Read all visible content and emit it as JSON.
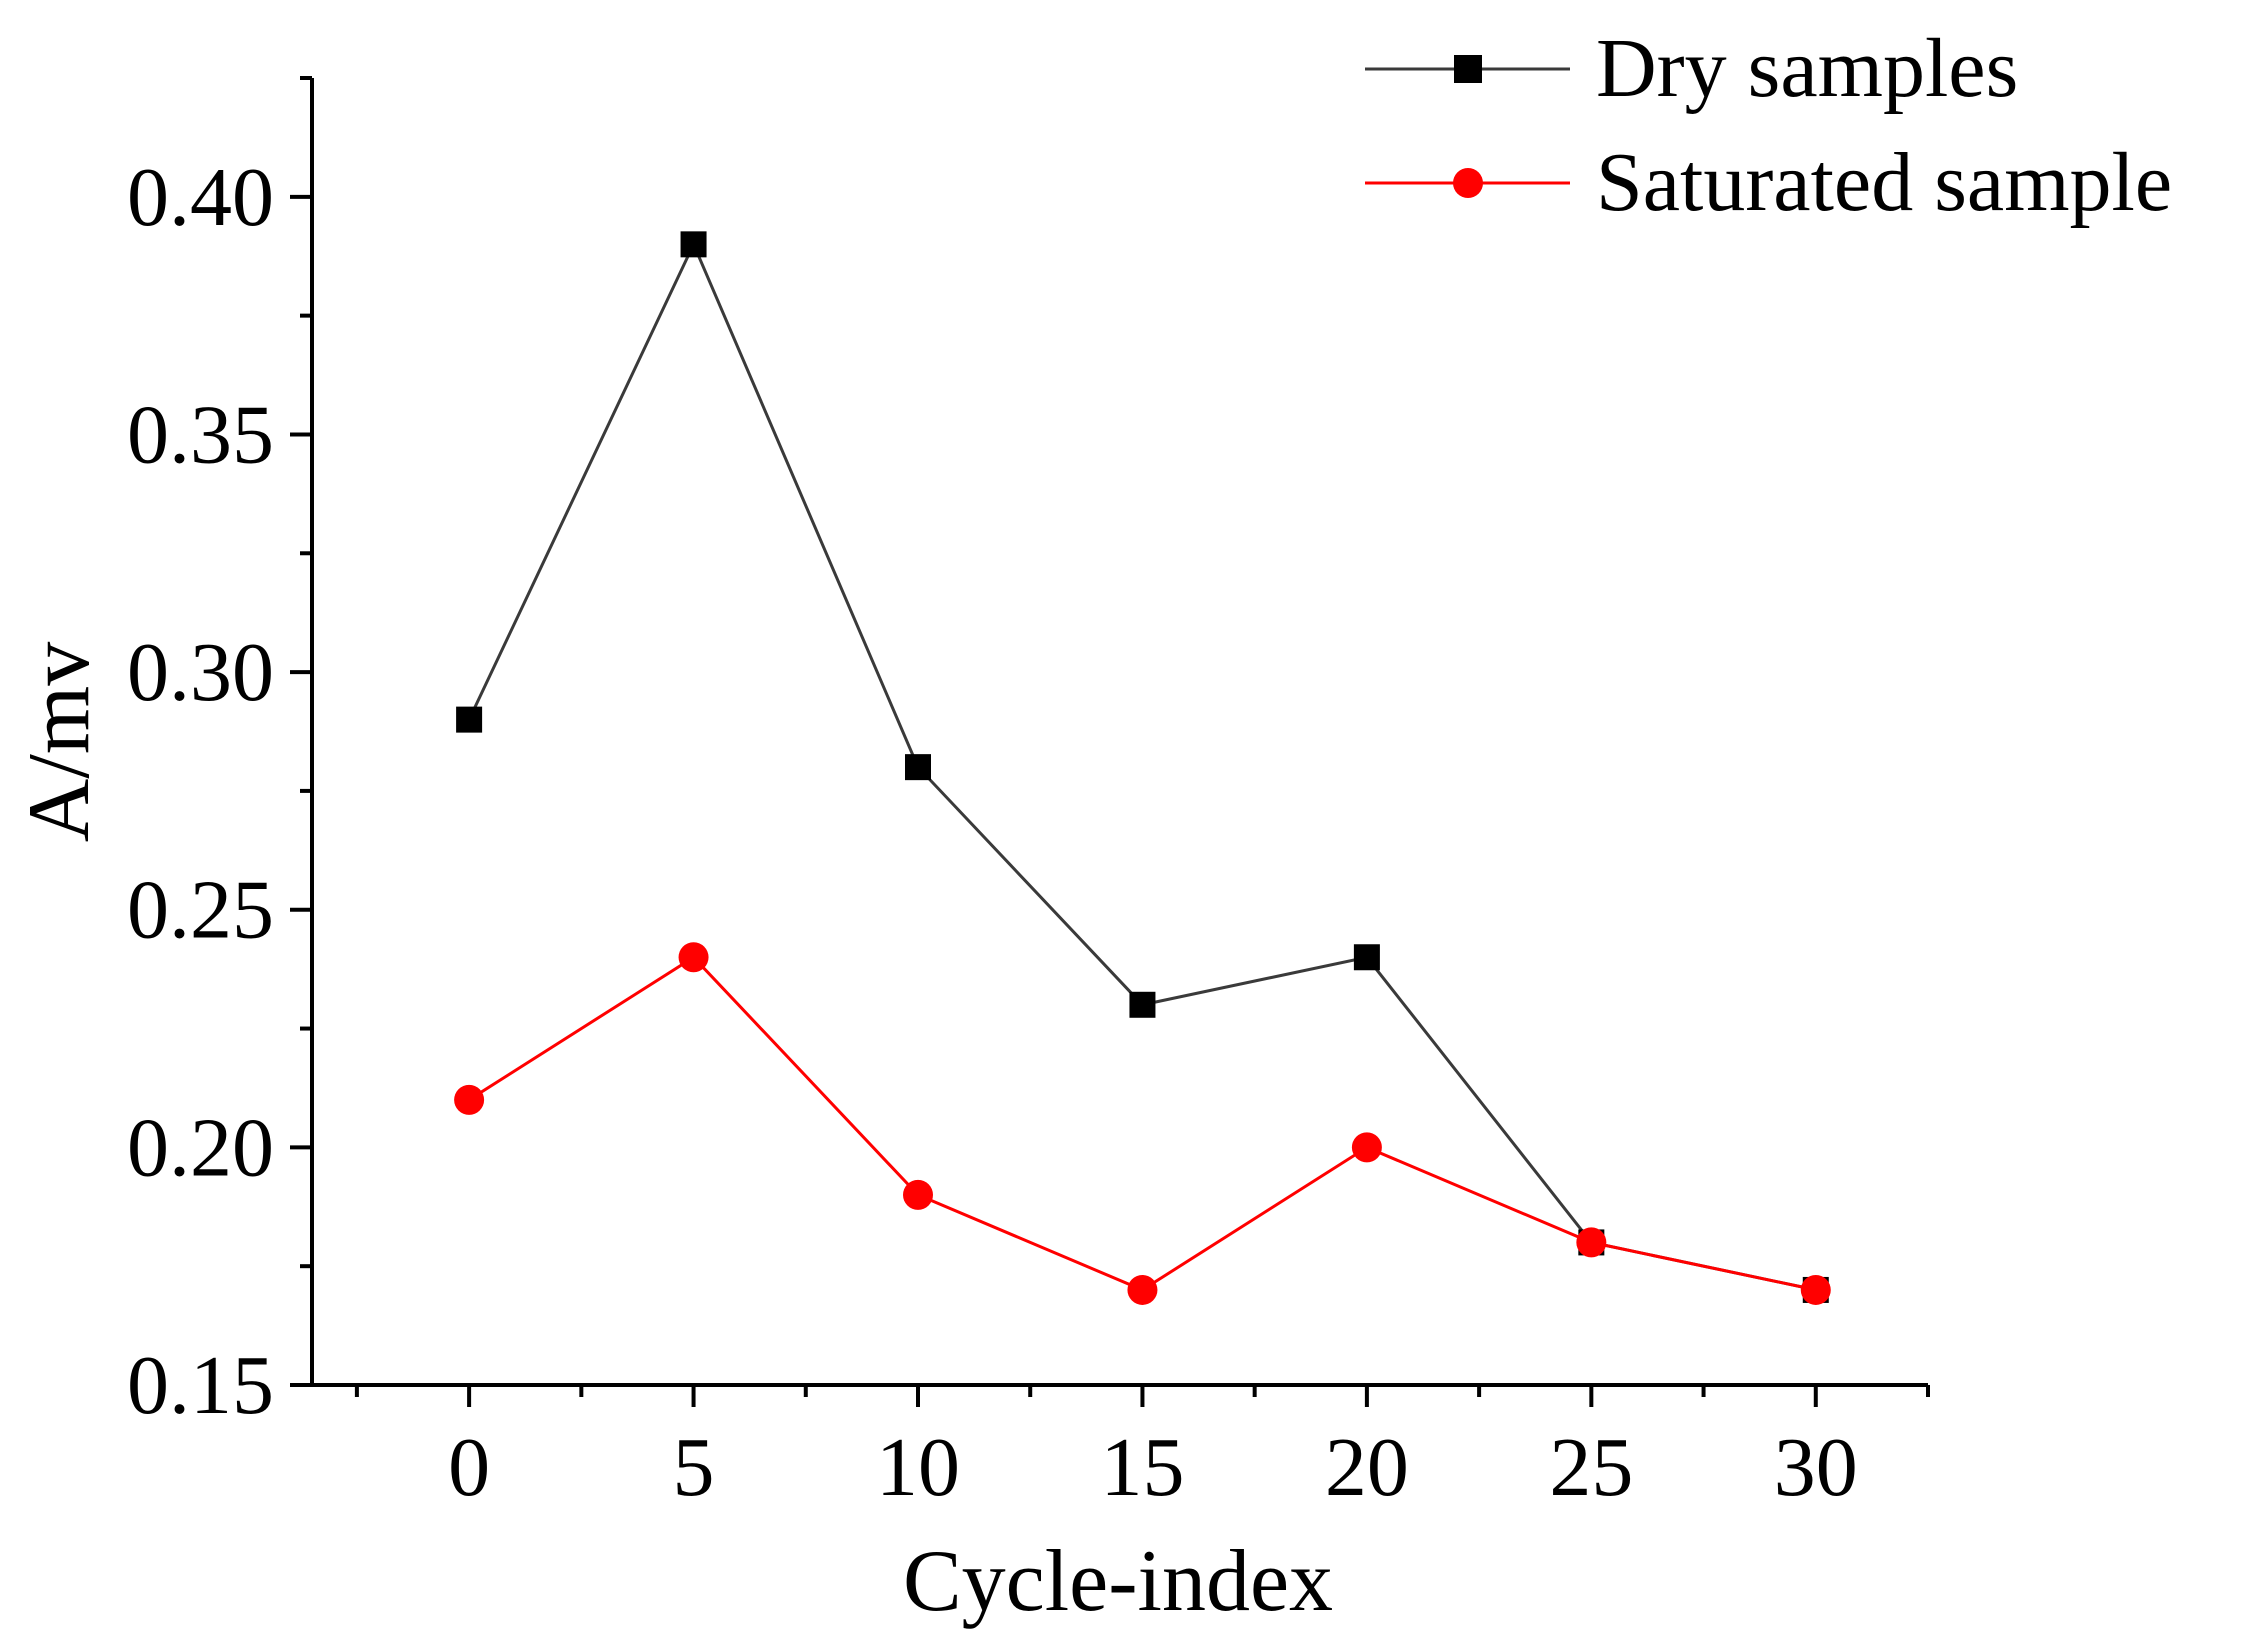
{
  "chart_data": {
    "type": "line",
    "title": "",
    "xlabel": "Cycle-index",
    "ylabel": "A/mv",
    "x": [
      0,
      5,
      10,
      15,
      20,
      25,
      30
    ],
    "xlim": [
      -3.5,
      32.5
    ],
    "ylim": [
      0.15,
      0.425
    ],
    "xticks": [
      0,
      5,
      10,
      15,
      20,
      25,
      30
    ],
    "xtick_labels": [
      "0",
      "5",
      "10",
      "15",
      "20",
      "25",
      "30"
    ],
    "yticks": [
      0.15,
      0.2,
      0.25,
      0.3,
      0.35,
      0.4
    ],
    "ytick_labels": [
      "0.15",
      "0.20",
      "0.25",
      "0.30",
      "0.35",
      "0.40"
    ],
    "grid": false,
    "legend_position": "top-right",
    "series": [
      {
        "name": "Dry samples",
        "values": [
          0.29,
          0.39,
          0.28,
          0.23,
          0.24,
          0.18,
          0.17
        ],
        "color": "#000000",
        "line_color": "#3a3a3a",
        "marker": "square"
      },
      {
        "name": "Saturated sample",
        "values": [
          0.21,
          0.24,
          0.19,
          0.17,
          0.2,
          0.18,
          0.17
        ],
        "color": "#ff0000",
        "line_color": "#ff0000",
        "marker": "circle"
      }
    ]
  }
}
